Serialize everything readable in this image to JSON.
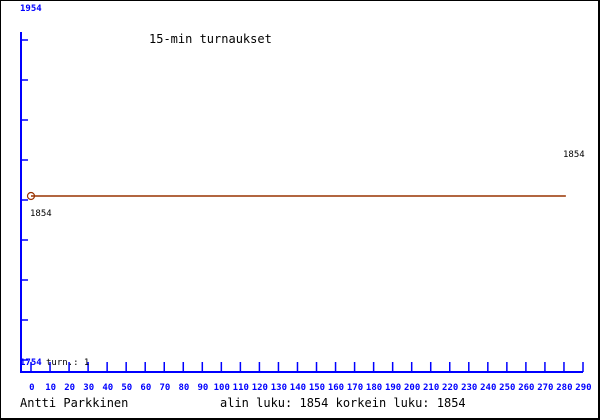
{
  "chart_data": {
    "type": "line",
    "title": "15-min turnaukset",
    "xlabel": "",
    "ylabel": "",
    "xlim": [
      0,
      290
    ],
    "ylim": [
      1754,
      1954
    ],
    "x_ticks": [
      "0",
      "10",
      "20",
      "30",
      "40",
      "50",
      "60",
      "70",
      "80",
      "90",
      "100",
      "110",
      "120",
      "130",
      "140",
      "150",
      "160",
      "170",
      "180",
      "190",
      "200",
      "210",
      "220",
      "230",
      "240",
      "250",
      "260",
      "270",
      "280",
      "290"
    ],
    "y_top_label": "1954",
    "y_bottom_label": "1754",
    "series": [
      {
        "x": [
          0,
          281
        ],
        "y": [
          1854,
          1854
        ]
      }
    ],
    "start_label": "1854",
    "end_label": "1854",
    "turn_label": "turn.: 1",
    "colors": {
      "axis": "#0000ff",
      "line": "#993300"
    }
  },
  "footer": {
    "author": "Antti Parkkinen",
    "stats": "alin luku: 1854  korkein luku: 1854"
  }
}
